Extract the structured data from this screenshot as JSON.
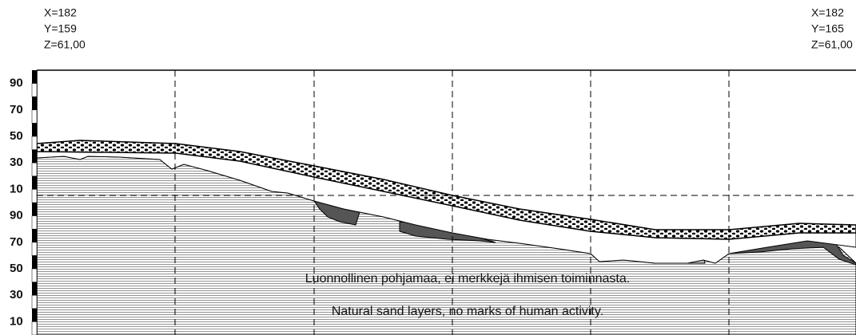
{
  "coords_left": [
    "X=182",
    "Y=159",
    "Z=61,00"
  ],
  "coords_right": [
    "X=182",
    "Y=165",
    "Z=61,00"
  ],
  "scale": [
    "90",
    "70",
    "50",
    "30",
    "10",
    "90",
    "70",
    "50",
    "30",
    "10"
  ],
  "notes": [
    "Luonnollinen pohjamaa, ei merkkejä ihmisen toiminnasta.",
    "Natural sand  layers, no marks of human activity."
  ]
}
